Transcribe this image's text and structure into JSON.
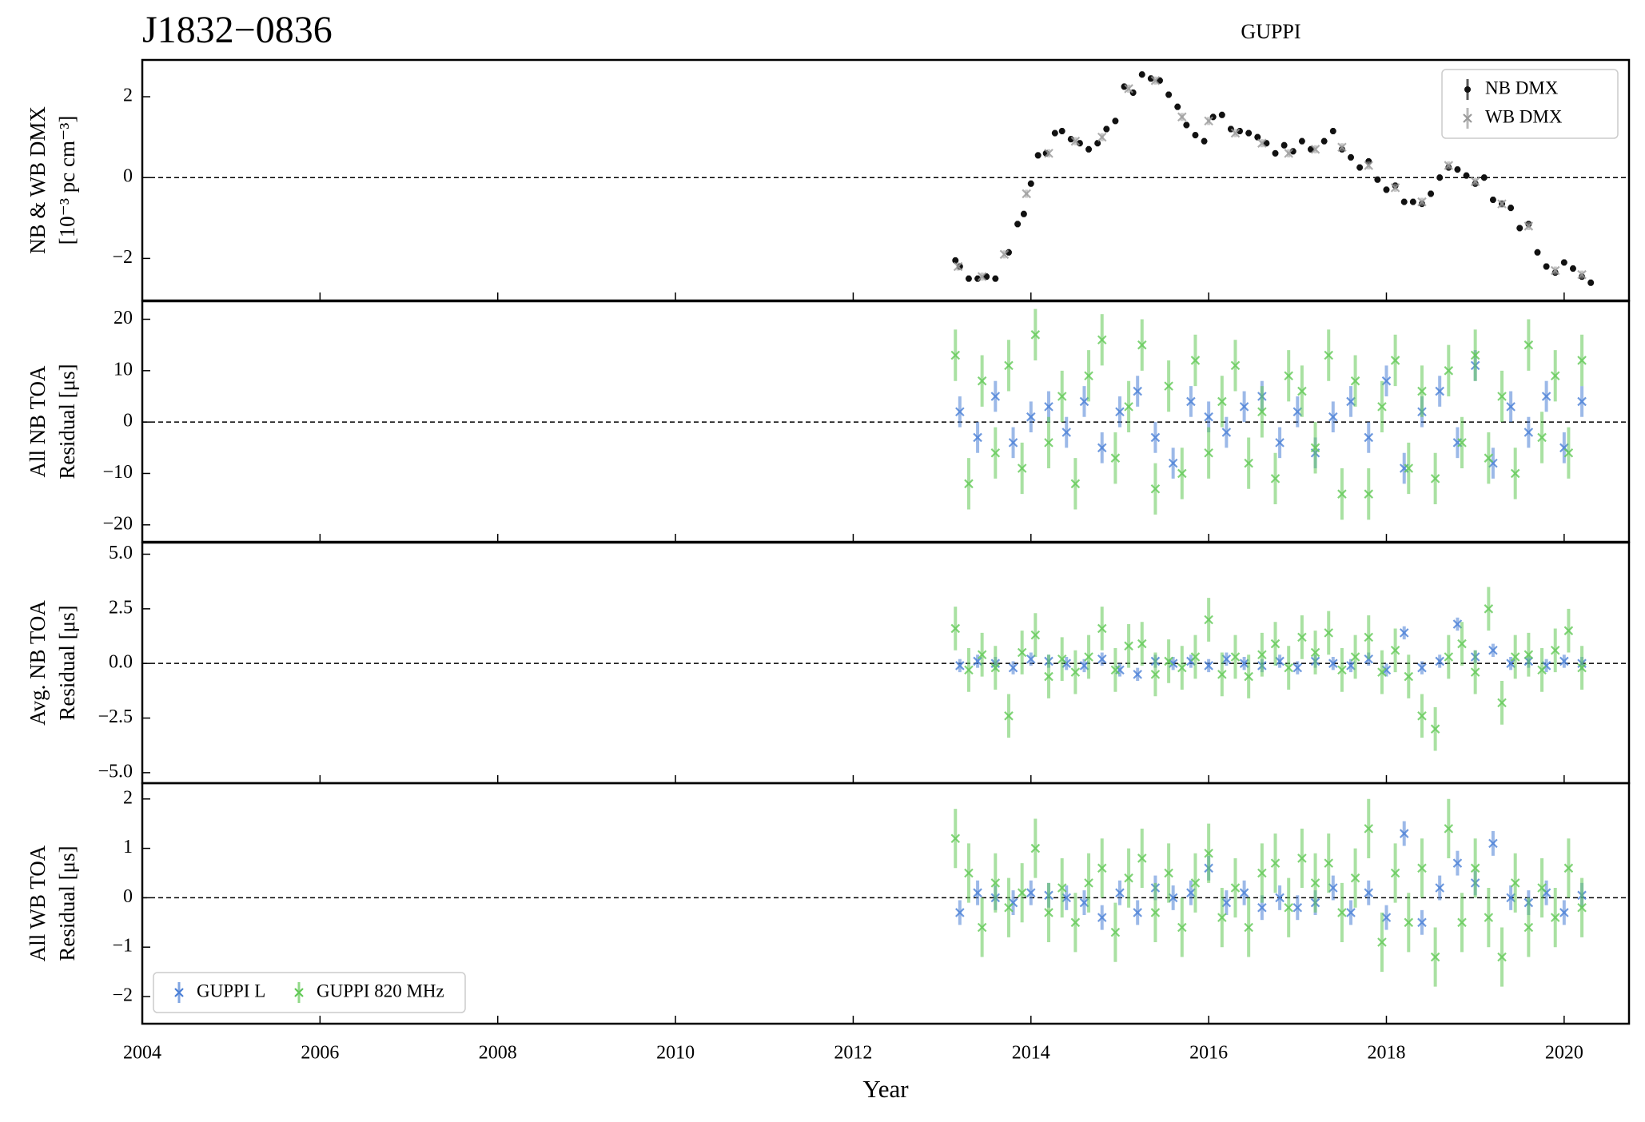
{
  "chart_data": [
    {
      "type": "errorbar",
      "title": "J1832−0836",
      "subtitle": "GUPPI",
      "ylabel": [
        "NB & WB DMX",
        "[10⁻³ pc cm⁻³]"
      ],
      "xlim": [
        2004,
        2020.73
      ],
      "ylim": [
        -3.04,
        2.91
      ],
      "yticks": [
        {
          "value": -2,
          "label": "−2"
        },
        0,
        2
      ],
      "hline": 0,
      "legend": "upper right",
      "legend_columns": 1,
      "series": [
        {
          "name": "NB DMX",
          "color": "#111111",
          "marker": "dot",
          "error": 0.08,
          "x": [
            2013.15,
            2013.2,
            2013.3,
            2013.4,
            2013.5,
            2013.6,
            2013.75,
            2013.85,
            2013.92,
            2014.0,
            2014.08,
            2014.17,
            2014.27,
            2014.35,
            2014.45,
            2014.55,
            2014.65,
            2014.75,
            2014.85,
            2014.95,
            2015.05,
            2015.15,
            2015.25,
            2015.35,
            2015.45,
            2015.55,
            2015.65,
            2015.75,
            2015.85,
            2015.95,
            2016.05,
            2016.15,
            2016.25,
            2016.35,
            2016.45,
            2016.55,
            2016.65,
            2016.75,
            2016.85,
            2016.95,
            2017.05,
            2017.15,
            2017.3,
            2017.4,
            2017.5,
            2017.6,
            2017.7,
            2017.8,
            2017.9,
            2018.0,
            2018.1,
            2018.2,
            2018.3,
            2018.4,
            2018.5,
            2018.6,
            2018.7,
            2018.8,
            2018.9,
            2019.0,
            2019.1,
            2019.2,
            2019.3,
            2019.4,
            2019.5,
            2019.6,
            2019.7,
            2019.8,
            2019.9,
            2020.0,
            2020.1,
            2020.2,
            2020.3
          ],
          "values": [
            -2.05,
            -2.2,
            -2.5,
            -2.5,
            -2.45,
            -2.5,
            -1.85,
            -1.15,
            -0.9,
            -0.15,
            0.55,
            0.6,
            1.1,
            1.15,
            0.95,
            0.85,
            0.7,
            0.85,
            1.2,
            1.4,
            2.25,
            2.1,
            2.55,
            2.45,
            2.4,
            2.05,
            1.75,
            1.3,
            1.05,
            0.9,
            1.5,
            1.55,
            1.2,
            1.15,
            1.1,
            1.0,
            0.85,
            0.6,
            0.8,
            0.65,
            0.9,
            0.7,
            0.9,
            1.15,
            0.7,
            0.5,
            0.25,
            0.4,
            -0.05,
            -0.3,
            -0.2,
            -0.6,
            -0.6,
            -0.65,
            -0.4,
            0.0,
            0.25,
            0.2,
            0.05,
            -0.15,
            0.0,
            -0.55,
            -0.65,
            -0.75,
            -1.25,
            -1.15,
            -1.85,
            -2.2,
            -2.35,
            -2.1,
            -2.25,
            -2.45,
            -2.6
          ]
        },
        {
          "name": "WB DMX",
          "color": "#9a9a9a",
          "marker": "x",
          "error": 0.1,
          "x": [
            2013.18,
            2013.45,
            2013.7,
            2013.95,
            2014.2,
            2014.5,
            2014.8,
            2015.1,
            2015.4,
            2015.7,
            2016.0,
            2016.3,
            2016.6,
            2016.9,
            2017.2,
            2017.5,
            2017.8,
            2018.1,
            2018.4,
            2018.7,
            2019.0,
            2019.3,
            2019.6,
            2019.9,
            2020.2
          ],
          "values": [
            -2.2,
            -2.45,
            -1.9,
            -0.4,
            0.6,
            0.9,
            1.0,
            2.2,
            2.4,
            1.5,
            1.4,
            1.1,
            0.85,
            0.6,
            0.7,
            0.75,
            0.3,
            -0.25,
            -0.6,
            0.3,
            -0.1,
            -0.65,
            -1.2,
            -2.3,
            -2.4
          ]
        }
      ]
    },
    {
      "type": "errorbar",
      "ylabel": [
        "All NB TOA",
        "Residual [μs]"
      ],
      "xlim": [
        2004,
        2020.73
      ],
      "ylim": [
        -23.3,
        23.5
      ],
      "yticks": [
        {
          "value": -20,
          "label": "−20"
        },
        {
          "value": -10,
          "label": "−10"
        },
        0,
        10,
        20
      ],
      "hline": 0,
      "series": [
        {
          "color": "#4a7fd6",
          "marker": "x",
          "error": 3,
          "x": [
            2013.2,
            2013.4,
            2013.6,
            2013.8,
            2014.0,
            2014.2,
            2014.4,
            2014.6,
            2014.8,
            2015.0,
            2015.2,
            2015.4,
            2015.6,
            2015.8,
            2016.0,
            2016.2,
            2016.4,
            2016.6,
            2016.8,
            2017.0,
            2017.2,
            2017.4,
            2017.6,
            2017.8,
            2018.0,
            2018.2,
            2018.4,
            2018.6,
            2018.8,
            2019.0,
            2019.2,
            2019.4,
            2019.6,
            2019.8,
            2020.0,
            2020.2
          ],
          "values": [
            2,
            -3,
            5,
            -4,
            1,
            3,
            -2,
            4,
            -5,
            2,
            6,
            -3,
            -8,
            4,
            1,
            -2,
            3,
            5,
            -4,
            2,
            -6,
            1,
            4,
            -3,
            8,
            -9,
            2,
            6,
            -4,
            11,
            -8,
            3,
            -2,
            5,
            -5,
            4
          ]
        },
        {
          "color": "#62c956",
          "marker": "x",
          "error": 5,
          "x": [
            2013.15,
            2013.3,
            2013.45,
            2013.6,
            2013.75,
            2013.9,
            2014.05,
            2014.2,
            2014.35,
            2014.5,
            2014.65,
            2014.8,
            2014.95,
            2015.1,
            2015.25,
            2015.4,
            2015.55,
            2015.7,
            2015.85,
            2016.0,
            2016.15,
            2016.3,
            2016.45,
            2016.6,
            2016.75,
            2016.9,
            2017.05,
            2017.2,
            2017.35,
            2017.5,
            2017.65,
            2017.8,
            2017.95,
            2018.1,
            2018.25,
            2018.4,
            2018.55,
            2018.7,
            2018.85,
            2019.0,
            2019.15,
            2019.3,
            2019.45,
            2019.6,
            2019.75,
            2019.9,
            2020.05,
            2020.2
          ],
          "values": [
            13,
            -12,
            8,
            -6,
            11,
            -9,
            17,
            -4,
            5,
            -12,
            9,
            16,
            -7,
            3,
            15,
            -13,
            7,
            -10,
            12,
            -6,
            4,
            11,
            -8,
            2,
            -11,
            9,
            6,
            -5,
            13,
            -14,
            8,
            -14,
            3,
            12,
            -9,
            6,
            -11,
            10,
            -4,
            13,
            -7,
            5,
            -10,
            15,
            -3,
            9,
            -6,
            12
          ]
        }
      ]
    },
    {
      "type": "errorbar",
      "ylabel": [
        "Avg. NB TOA",
        "Residual [μs]"
      ],
      "xlim": [
        2004,
        2020.73
      ],
      "ylim": [
        -5.48,
        5.53
      ],
      "yticks": [
        {
          "value": -5,
          "label": "−5.0"
        },
        {
          "value": -2.5,
          "label": "−2.5"
        },
        {
          "value": 0,
          "label": "0.0"
        },
        2.5,
        {
          "value": 5,
          "label": "5.0"
        }
      ],
      "hline": 0,
      "series": [
        {
          "color": "#4a7fd6",
          "marker": "x",
          "error": 0.3,
          "x": [
            2013.2,
            2013.4,
            2013.6,
            2013.8,
            2014.0,
            2014.2,
            2014.4,
            2014.6,
            2014.8,
            2015.0,
            2015.2,
            2015.4,
            2015.6,
            2015.8,
            2016.0,
            2016.2,
            2016.4,
            2016.6,
            2016.8,
            2017.0,
            2017.2,
            2017.4,
            2017.6,
            2017.8,
            2018.0,
            2018.2,
            2018.4,
            2018.6,
            2018.8,
            2019.0,
            2019.2,
            2019.4,
            2019.6,
            2019.8,
            2020.0,
            2020.2
          ],
          "values": [
            -0.1,
            0.1,
            0,
            -0.2,
            0.2,
            0.1,
            0,
            -0.1,
            0.2,
            -0.3,
            -0.5,
            0.1,
            0,
            0.1,
            -0.1,
            0.2,
            0,
            -0.1,
            0.1,
            -0.2,
            0.1,
            0,
            -0.1,
            0.2,
            -0.3,
            1.4,
            -0.2,
            0.1,
            1.8,
            0.3,
            0.6,
            0,
            0.1,
            -0.1,
            0.1,
            0
          ]
        },
        {
          "color": "#62c956",
          "marker": "x",
          "error": 1.0,
          "x": [
            2013.15,
            2013.3,
            2013.45,
            2013.6,
            2013.75,
            2013.9,
            2014.05,
            2014.2,
            2014.35,
            2014.5,
            2014.65,
            2014.8,
            2014.95,
            2015.1,
            2015.25,
            2015.4,
            2015.55,
            2015.7,
            2015.85,
            2016.0,
            2016.15,
            2016.3,
            2016.45,
            2016.6,
            2016.75,
            2016.9,
            2017.05,
            2017.2,
            2017.35,
            2017.5,
            2017.65,
            2017.8,
            2017.95,
            2018.1,
            2018.25,
            2018.4,
            2018.55,
            2018.7,
            2018.85,
            2019.0,
            2019.15,
            2019.3,
            2019.45,
            2019.6,
            2019.75,
            2019.9,
            2020.05,
            2020.2
          ],
          "values": [
            1.6,
            -0.3,
            0.4,
            -0.2,
            -2.4,
            0.5,
            1.3,
            -0.6,
            0.2,
            -0.4,
            0.3,
            1.6,
            -0.3,
            0.8,
            0.9,
            -0.5,
            0.1,
            -0.2,
            0.3,
            2.0,
            -0.5,
            0.3,
            -0.6,
            0.4,
            0.9,
            -0.2,
            1.2,
            0.5,
            1.4,
            -0.3,
            0.3,
            1.2,
            -0.4,
            0.6,
            -0.6,
            -2.4,
            -3.0,
            0.3,
            0.9,
            -0.4,
            2.5,
            -1.8,
            0.3,
            0.4,
            -0.3,
            0.6,
            1.5,
            -0.2
          ]
        }
      ]
    },
    {
      "type": "errorbar",
      "ylabel": [
        "All WB TOA",
        "Residual [μs]"
      ],
      "xlabel": "Year",
      "xlim": [
        2004,
        2020.73
      ],
      "ylim": [
        -2.55,
        2.32
      ],
      "xticks": [
        2004,
        2006,
        2008,
        2010,
        2012,
        2014,
        2016,
        2018,
        2020
      ],
      "yticks": [
        {
          "value": -2,
          "label": "−2"
        },
        {
          "value": -1,
          "label": "−1"
        },
        0,
        1,
        2
      ],
      "hline": 0,
      "legend": "lower left",
      "legend_columns": 2,
      "series": [
        {
          "name": "GUPPI L",
          "color": "#4a7fd6",
          "marker": "x",
          "error": 0.25,
          "x": [
            2013.2,
            2013.4,
            2013.6,
            2013.8,
            2014.0,
            2014.2,
            2014.4,
            2014.6,
            2014.8,
            2015.0,
            2015.2,
            2015.4,
            2015.6,
            2015.8,
            2016.0,
            2016.2,
            2016.4,
            2016.6,
            2016.8,
            2017.0,
            2017.2,
            2017.4,
            2017.6,
            2017.8,
            2018.0,
            2018.2,
            2018.4,
            2018.6,
            2018.8,
            2019.0,
            2019.2,
            2019.4,
            2019.6,
            2019.8,
            2020.0,
            2020.2
          ],
          "values": [
            -0.3,
            0.1,
            0,
            -0.1,
            0.1,
            0.05,
            0,
            -0.1,
            -0.4,
            0.1,
            -0.3,
            0.2,
            0,
            0.1,
            0.6,
            -0.1,
            0.1,
            -0.2,
            0,
            -0.2,
            -0.1,
            0.2,
            -0.3,
            0.1,
            -0.4,
            1.3,
            -0.5,
            0.2,
            0.7,
            0.3,
            1.1,
            0,
            -0.1,
            0.1,
            -0.3,
            0.05
          ]
        },
        {
          "name": "GUPPI 820 MHz",
          "color": "#62c956",
          "marker": "x",
          "error": 0.6,
          "x": [
            2013.15,
            2013.3,
            2013.45,
            2013.6,
            2013.75,
            2013.9,
            2014.05,
            2014.2,
            2014.35,
            2014.5,
            2014.65,
            2014.8,
            2014.95,
            2015.1,
            2015.25,
            2015.4,
            2015.55,
            2015.7,
            2015.85,
            2016.0,
            2016.15,
            2016.3,
            2016.45,
            2016.6,
            2016.75,
            2016.9,
            2017.05,
            2017.2,
            2017.35,
            2017.5,
            2017.65,
            2017.8,
            2017.95,
            2018.1,
            2018.25,
            2018.4,
            2018.55,
            2018.7,
            2018.85,
            2019.0,
            2019.15,
            2019.3,
            2019.45,
            2019.6,
            2019.75,
            2019.9,
            2020.05,
            2020.2
          ],
          "values": [
            1.2,
            0.5,
            -0.6,
            0.3,
            -0.2,
            0.1,
            1.0,
            -0.3,
            0.2,
            -0.5,
            0.3,
            0.6,
            -0.7,
            0.4,
            0.8,
            -0.3,
            0.5,
            -0.6,
            0.3,
            0.9,
            -0.4,
            0.2,
            -0.6,
            0.5,
            0.7,
            -0.2,
            0.8,
            0.3,
            0.7,
            -0.3,
            0.4,
            1.4,
            -0.9,
            0.5,
            -0.5,
            0.6,
            -1.2,
            1.4,
            -0.5,
            0.6,
            -0.4,
            -1.2,
            0.3,
            -0.6,
            0.2,
            -0.4,
            0.6,
            -0.2
          ]
        }
      ]
    }
  ]
}
